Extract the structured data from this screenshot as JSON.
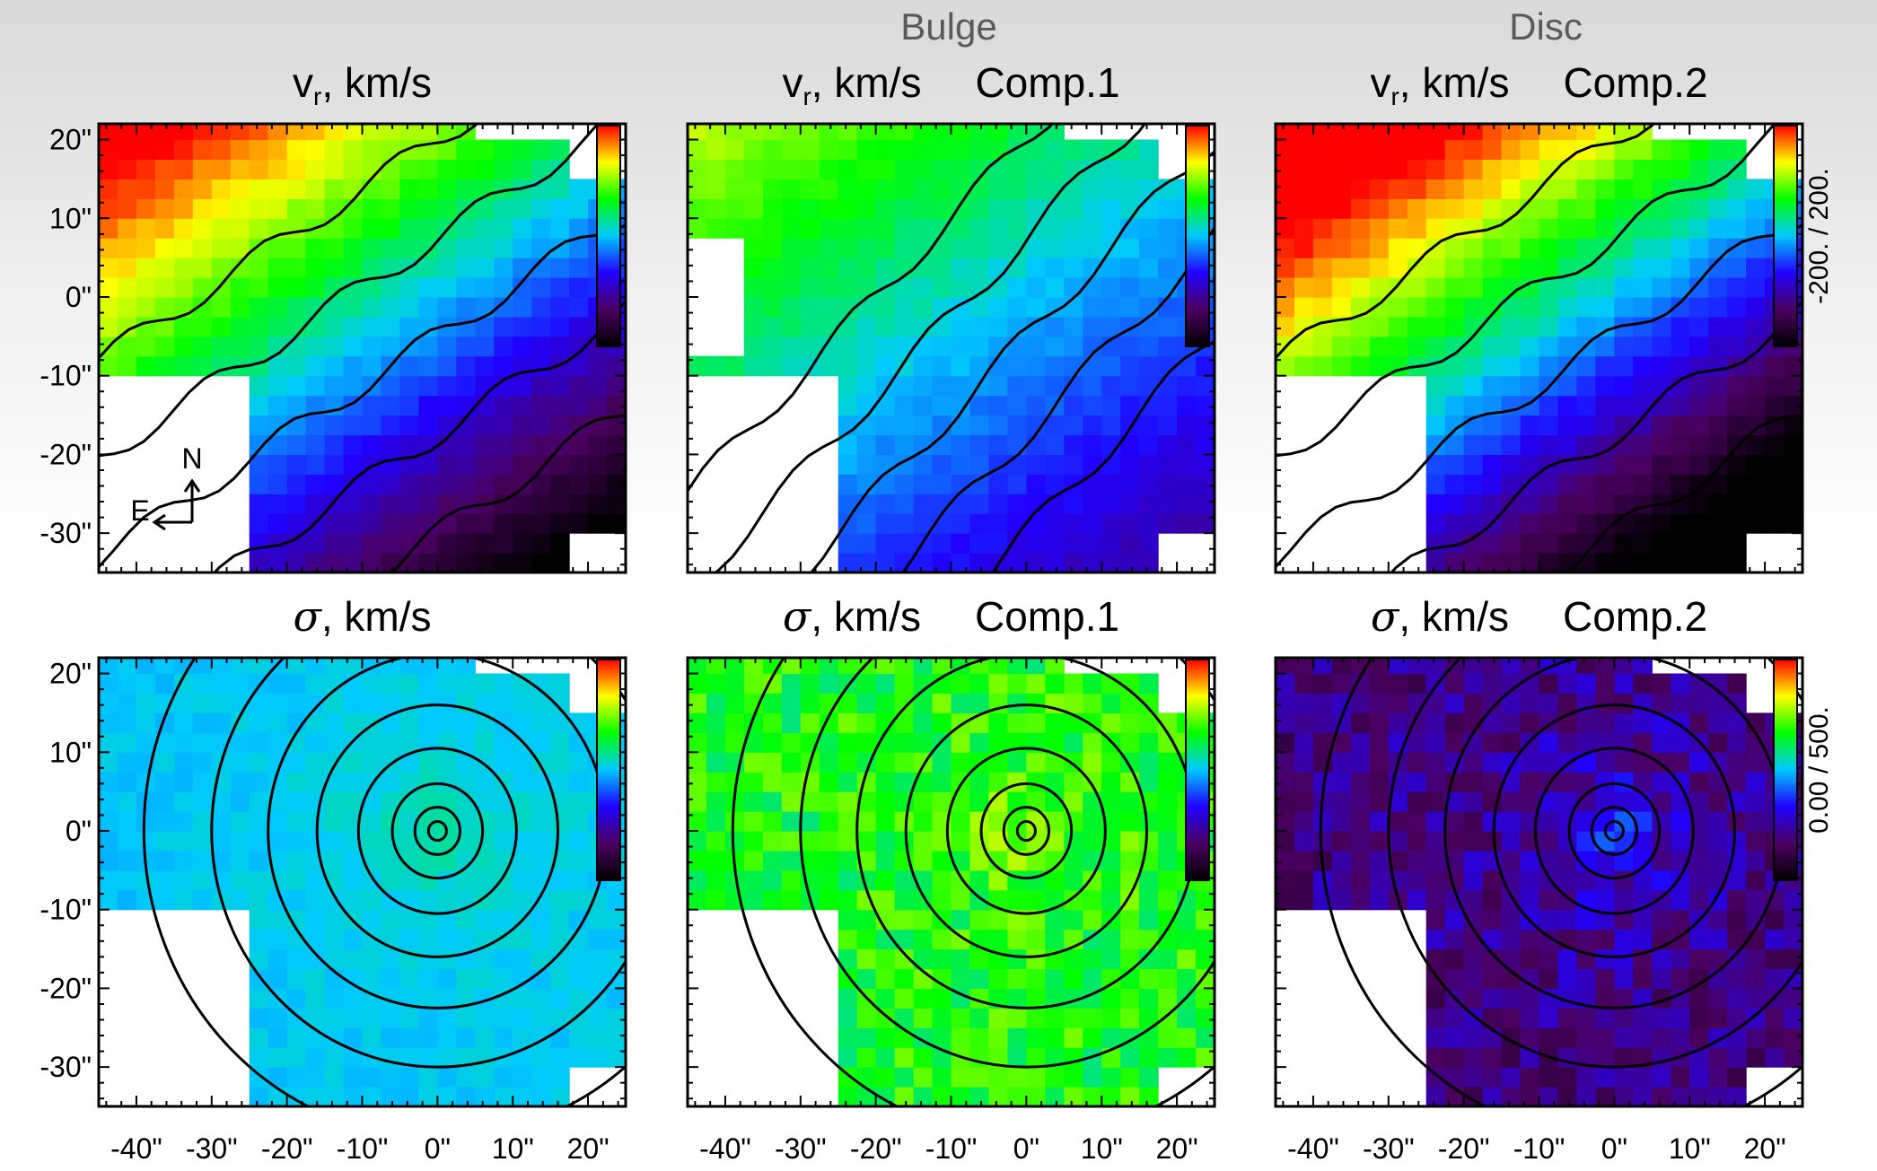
{
  "figure": {
    "column_headings": [
      "",
      "Bulge",
      "Disc"
    ],
    "x_ticks": [
      "-40\"",
      "-30\"",
      "-20\"",
      "-10\"",
      "0\"",
      "10\"",
      "20\""
    ],
    "y_ticks": [
      "20\"",
      "10\"",
      "0\"",
      "-10\"",
      "-20\"",
      "-30\""
    ],
    "compass": {
      "north": "N",
      "east": "E"
    },
    "panels": [
      {
        "symbol": "v",
        "subscript": "r",
        "unit": ", km/s",
        "component": "",
        "map": "velocity",
        "variant": "total",
        "colorbar_label": ""
      },
      {
        "symbol": "v",
        "subscript": "r",
        "unit": ", km/s",
        "component": "Comp.1",
        "map": "velocity",
        "variant": "bulge",
        "colorbar_label": ""
      },
      {
        "symbol": "v",
        "subscript": "r",
        "unit": ", km/s",
        "component": "Comp.2",
        "map": "velocity",
        "variant": "disc",
        "colorbar_label": "-200. / 200."
      },
      {
        "symbol": "σ",
        "subscript": "",
        "unit": ", km/s",
        "component": "",
        "map": "dispersion",
        "variant": "total",
        "colorbar_label": ""
      },
      {
        "symbol": "σ",
        "subscript": "",
        "unit": ", km/s",
        "component": "Comp.1",
        "map": "dispersion",
        "variant": "bulge",
        "colorbar_label": ""
      },
      {
        "symbol": "σ",
        "subscript": "",
        "unit": ", km/s",
        "component": "Comp.2",
        "map": "dispersion",
        "variant": "disc",
        "colorbar_label": "0.00 / 500."
      }
    ],
    "colors": {
      "colorbar": [
        "#000000",
        "#4a0060",
        "#2000ff",
        "#00c8ff",
        "#00ff00",
        "#ffff00",
        "#ff0000"
      ],
      "contour": "#000000"
    }
  }
}
